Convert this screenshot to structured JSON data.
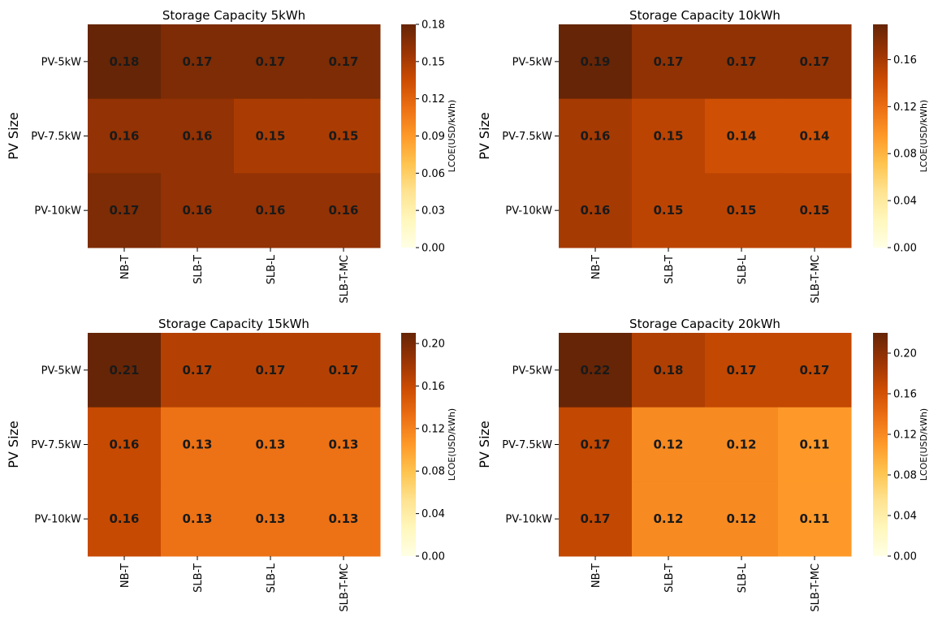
{
  "chart_data": [
    {
      "type": "heatmap",
      "title": "Storage Capacity 5kWh",
      "ylabel": "PV Size",
      "colorbar_label": "LCOE(USD/kWh)",
      "colorbar_range": [
        0,
        0.18
      ],
      "colorbar_ticks": [
        "0.00",
        "0.03",
        "0.06",
        "0.09",
        "0.12",
        "0.15",
        "0.18"
      ],
      "rows": [
        "PV-5kW",
        "PV-7.5kW",
        "PV-10kW"
      ],
      "cols": [
        "NB-T",
        "SLB-T",
        "SLB-L",
        "SLB-T-MC"
      ],
      "values": [
        [
          0.18,
          0.17,
          0.17,
          0.17
        ],
        [
          0.16,
          0.16,
          0.15,
          0.15
        ],
        [
          0.17,
          0.16,
          0.16,
          0.16
        ]
      ],
      "labels": [
        [
          "0.18",
          "0.17",
          "0.17",
          "0.17"
        ],
        [
          "0.16",
          "0.16",
          "0.15",
          "0.15"
        ],
        [
          "0.17",
          "0.16",
          "0.16",
          "0.16"
        ]
      ]
    },
    {
      "type": "heatmap",
      "title": "Storage Capacity 10kWh",
      "ylabel": "PV Size",
      "colorbar_label": "LCOE(USD/kWh)",
      "colorbar_range": [
        0,
        0.19
      ],
      "colorbar_ticks": [
        "0.00",
        "0.04",
        "0.08",
        "0.12",
        "0.16"
      ],
      "rows": [
        "PV-5kW",
        "PV-7.5kW",
        "PV-10kW"
      ],
      "cols": [
        "NB-T",
        "SLB-T",
        "SLB-L",
        "SLB-T-MC"
      ],
      "values": [
        [
          0.19,
          0.17,
          0.17,
          0.17
        ],
        [
          0.16,
          0.15,
          0.14,
          0.14
        ],
        [
          0.16,
          0.15,
          0.15,
          0.15
        ]
      ],
      "labels": [
        [
          "0.19",
          "0.17",
          "0.17",
          "0.17"
        ],
        [
          "0.16",
          "0.15",
          "0.14",
          "0.14"
        ],
        [
          "0.16",
          "0.15",
          "0.15",
          "0.15"
        ]
      ]
    },
    {
      "type": "heatmap",
      "title": "Storage Capacity 15kWh",
      "ylabel": "PV Size",
      "colorbar_label": "LCOE(USD/kWh)",
      "colorbar_range": [
        0,
        0.21
      ],
      "colorbar_ticks": [
        "0.00",
        "0.04",
        "0.08",
        "0.12",
        "0.16",
        "0.20"
      ],
      "rows": [
        "PV-5kW",
        "PV-7.5kW",
        "PV-10kW"
      ],
      "cols": [
        "NB-T",
        "SLB-T",
        "SLB-L",
        "SLB-T-MC"
      ],
      "values": [
        [
          0.21,
          0.17,
          0.17,
          0.17
        ],
        [
          0.16,
          0.13,
          0.13,
          0.13
        ],
        [
          0.16,
          0.13,
          0.13,
          0.13
        ]
      ],
      "labels": [
        [
          "0.21",
          "0.17",
          "0.17",
          "0.17"
        ],
        [
          "0.16",
          "0.13",
          "0.13",
          "0.13"
        ],
        [
          "0.16",
          "0.13",
          "0.13",
          "0.13"
        ]
      ]
    },
    {
      "type": "heatmap",
      "title": "Storage Capacity 20kWh",
      "ylabel": "PV Size",
      "colorbar_label": "LCOE(USD/kWh)",
      "colorbar_range": [
        0,
        0.22
      ],
      "colorbar_ticks": [
        "0.00",
        "0.04",
        "0.08",
        "0.12",
        "0.16",
        "0.20"
      ],
      "rows": [
        "PV-5kW",
        "PV-7.5kW",
        "PV-10kW"
      ],
      "cols": [
        "NB-T",
        "SLB-T",
        "SLB-L",
        "SLB-T-MC"
      ],
      "values": [
        [
          0.22,
          0.18,
          0.17,
          0.17
        ],
        [
          0.17,
          0.12,
          0.12,
          0.11
        ],
        [
          0.17,
          0.12,
          0.12,
          0.11
        ]
      ],
      "labels": [
        [
          "0.22",
          "0.18",
          "0.17",
          "0.17"
        ],
        [
          "0.17",
          "0.12",
          "0.12",
          "0.11"
        ],
        [
          "0.17",
          "0.12",
          "0.12",
          "0.11"
        ]
      ]
    }
  ],
  "colormap": [
    "#ffffe5",
    "#fff7bc",
    "#fee391",
    "#fec44f",
    "#fe9929",
    "#ec7014",
    "#cc4c02",
    "#993404",
    "#662506"
  ]
}
